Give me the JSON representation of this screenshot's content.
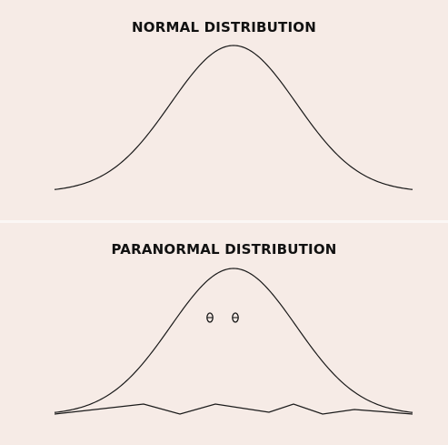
{
  "panels": {
    "top": {
      "title": "NORMAL DISTRIBUTION"
    },
    "bottom": {
      "title": "PARANORMAL DISTRIBUTION"
    }
  }
}
